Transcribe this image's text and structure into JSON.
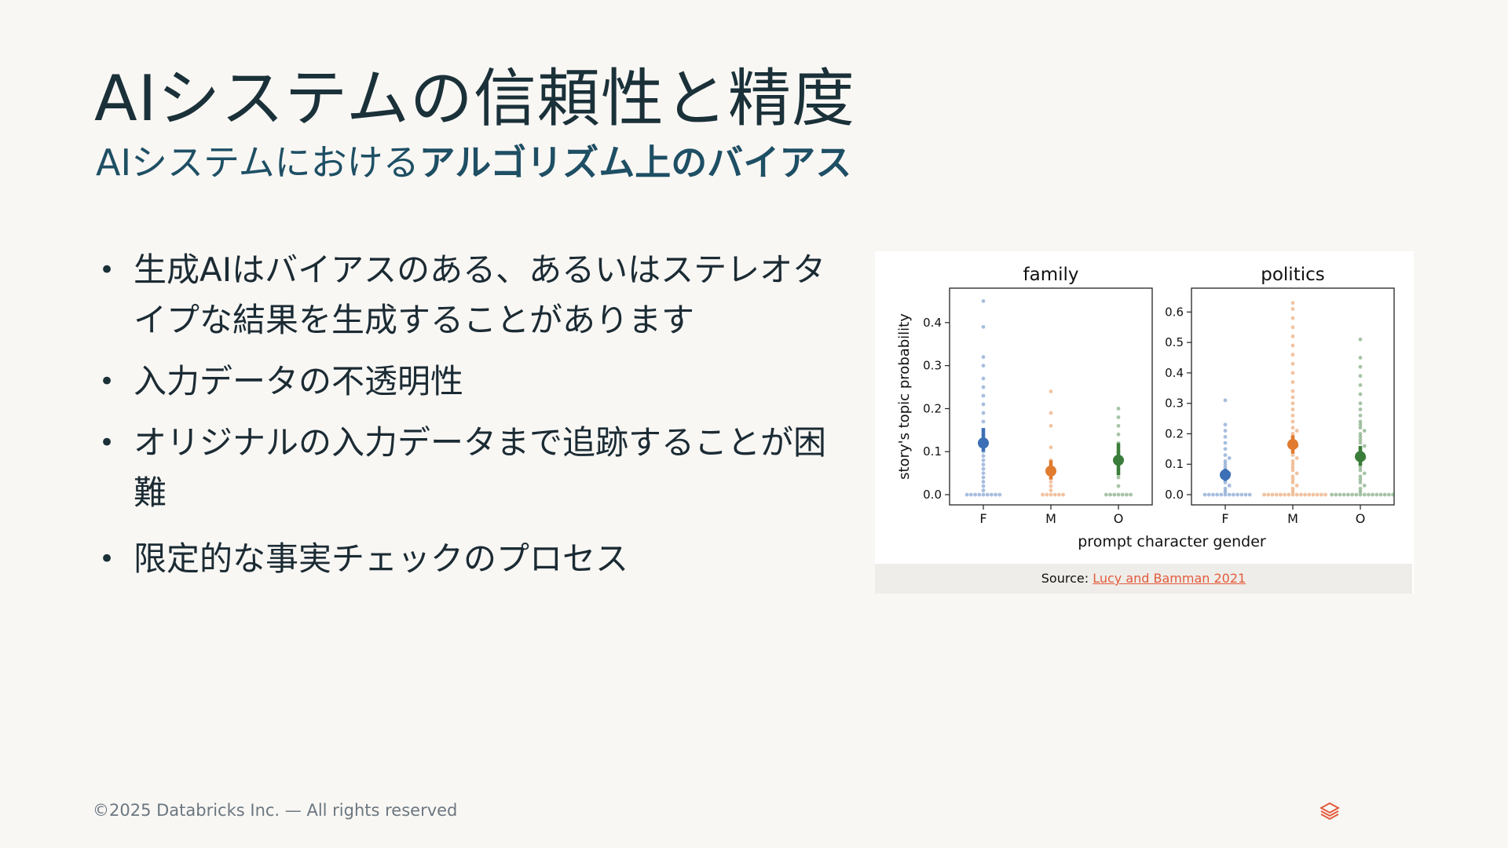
{
  "slide": {
    "title": "AIシステムの信頼性と精度",
    "subtitle_regular": "AIシステムにおける",
    "subtitle_bold": "アルゴリズム上のバイアス",
    "bullets": [
      "生成AIはバイアスのある、あるいはステレオタイプな結果を生成することがあります",
      "入力データの不透明性",
      "オリジナルの入力データまで追跡することが困難",
      "限定的な事実チェックのプロセス"
    ]
  },
  "figure": {
    "caption_prefix": "Source: ",
    "caption_link": "Lucy and Bamman 2021"
  },
  "footer": {
    "copyright": "©2025 Databricks Inc. — All rights reserved",
    "logo_icon": "databricks-logo-icon"
  },
  "chart_data": [
    {
      "type": "scatter",
      "title": "family",
      "ylabel": "story's topic probability",
      "xlabel": "prompt character gender",
      "categories": [
        "F",
        "M",
        "O"
      ],
      "ylim": [
        0,
        0.46
      ],
      "yticks": [
        0.0,
        0.1,
        0.2,
        0.3,
        0.4
      ],
      "series": [
        {
          "category": "F",
          "color": "#3b6fb6",
          "mean": 0.12,
          "ci": [
            0.1,
            0.155
          ],
          "points": [
            0.0,
            0.0,
            0.0,
            0.0,
            0.0,
            0.0,
            0.0,
            0.0,
            0.0,
            0.01,
            0.02,
            0.03,
            0.04,
            0.05,
            0.06,
            0.07,
            0.08,
            0.09,
            0.1,
            0.11,
            0.12,
            0.13,
            0.14,
            0.15,
            0.17,
            0.19,
            0.21,
            0.23,
            0.25,
            0.27,
            0.3,
            0.32,
            0.39,
            0.45
          ]
        },
        {
          "category": "M",
          "color": "#e07b2f",
          "mean": 0.055,
          "ci": [
            0.035,
            0.08
          ],
          "points": [
            0.0,
            0.0,
            0.0,
            0.0,
            0.0,
            0.0,
            0.01,
            0.02,
            0.03,
            0.04,
            0.05,
            0.06,
            0.07,
            0.08,
            0.11,
            0.16,
            0.19,
            0.24
          ]
        },
        {
          "category": "O",
          "color": "#3a7d3a",
          "mean": 0.08,
          "ci": [
            0.045,
            0.12
          ],
          "points": [
            0.0,
            0.0,
            0.0,
            0.0,
            0.0,
            0.0,
            0.0,
            0.02,
            0.04,
            0.05,
            0.06,
            0.07,
            0.08,
            0.09,
            0.1,
            0.11,
            0.12,
            0.14,
            0.16,
            0.18,
            0.2
          ]
        }
      ]
    },
    {
      "type": "scatter",
      "title": "politics",
      "ylabel": "",
      "xlabel": "prompt character gender",
      "categories": [
        "F",
        "M",
        "O"
      ],
      "ylim": [
        0,
        0.65
      ],
      "yticks": [
        0.0,
        0.1,
        0.2,
        0.3,
        0.4,
        0.5,
        0.6
      ],
      "series": [
        {
          "category": "F",
          "color": "#3b6fb6",
          "mean": 0.065,
          "ci": [
            0.045,
            0.085
          ],
          "points": [
            0.0,
            0.0,
            0.0,
            0.0,
            0.0,
            0.0,
            0.0,
            0.0,
            0.0,
            0.0,
            0.0,
            0.0,
            0.01,
            0.02,
            0.03,
            0.04,
            0.05,
            0.06,
            0.07,
            0.08,
            0.09,
            0.1,
            0.11,
            0.12,
            0.13,
            0.15,
            0.17,
            0.19,
            0.21,
            0.23,
            0.31
          ]
        },
        {
          "category": "M",
          "color": "#e07b2f",
          "mean": 0.165,
          "ci": [
            0.135,
            0.195
          ],
          "points": [
            0.0,
            0.0,
            0.0,
            0.0,
            0.0,
            0.0,
            0.0,
            0.0,
            0.0,
            0.0,
            0.0,
            0.0,
            0.0,
            0.0,
            0.0,
            0.0,
            0.01,
            0.02,
            0.03,
            0.04,
            0.05,
            0.06,
            0.07,
            0.08,
            0.09,
            0.1,
            0.11,
            0.12,
            0.13,
            0.14,
            0.15,
            0.16,
            0.17,
            0.18,
            0.19,
            0.2,
            0.21,
            0.22,
            0.24,
            0.26,
            0.28,
            0.3,
            0.32,
            0.34,
            0.37,
            0.4,
            0.43,
            0.46,
            0.49,
            0.52,
            0.55,
            0.58,
            0.61,
            0.63
          ]
        },
        {
          "category": "O",
          "color": "#3a7d3a",
          "mean": 0.125,
          "ci": [
            0.095,
            0.16
          ],
          "points": [
            0.0,
            0.0,
            0.0,
            0.0,
            0.0,
            0.0,
            0.0,
            0.0,
            0.0,
            0.0,
            0.0,
            0.0,
            0.0,
            0.0,
            0.0,
            0.0,
            0.01,
            0.02,
            0.03,
            0.04,
            0.05,
            0.06,
            0.07,
            0.08,
            0.09,
            0.1,
            0.11,
            0.12,
            0.13,
            0.14,
            0.15,
            0.16,
            0.17,
            0.18,
            0.19,
            0.2,
            0.21,
            0.22,
            0.23,
            0.24,
            0.26,
            0.28,
            0.3,
            0.33,
            0.36,
            0.39,
            0.42,
            0.45,
            0.51
          ]
        }
      ]
    }
  ]
}
